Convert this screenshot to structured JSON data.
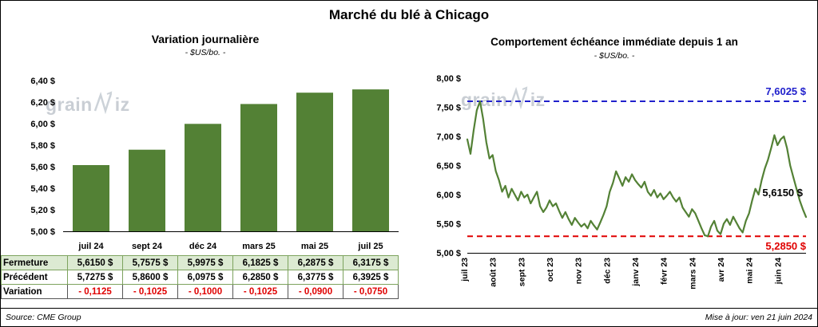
{
  "header": {
    "title": "Marché du blé à Chicago"
  },
  "branding": {
    "watermark_pre": "grain",
    "watermark_post": "iz"
  },
  "chart_data": [
    {
      "type": "bar",
      "title": "Variation journalière",
      "subtitle": "- $US/bo. -",
      "categories": [
        "juil 24",
        "sept 24",
        "déc 24",
        "mars 25",
        "mai 25",
        "juil 25"
      ],
      "values": [
        5.615,
        5.7575,
        5.9975,
        6.1825,
        6.2875,
        6.3175
      ],
      "ylim": [
        5.0,
        6.4
      ],
      "ytick_step": 0.2,
      "bar_color": "#538135",
      "grid": false,
      "legend": false
    },
    {
      "type": "line",
      "title": "Comportement échéance immédiate depuis 1 an",
      "subtitle": "- $US/bo. -",
      "x_labels": [
        "juil 23",
        "août 23",
        "sept 23",
        "oct 23",
        "nov 23",
        "déc 23",
        "janv 24",
        "févr 24",
        "mars 24",
        "avr 24",
        "mai 24",
        "juin 24"
      ],
      "values": [
        6.95,
        6.7,
        7.1,
        7.45,
        7.6025,
        7.3,
        6.9,
        6.62,
        6.68,
        6.4,
        6.25,
        6.05,
        6.15,
        5.95,
        6.1,
        6.0,
        5.9,
        6.05,
        5.95,
        6.0,
        5.85,
        5.95,
        6.05,
        5.8,
        5.7,
        5.78,
        5.9,
        5.8,
        5.85,
        5.72,
        5.6,
        5.7,
        5.58,
        5.48,
        5.6,
        5.52,
        5.45,
        5.5,
        5.42,
        5.55,
        5.47,
        5.4,
        5.52,
        5.65,
        5.8,
        6.05,
        6.2,
        6.4,
        6.28,
        6.15,
        6.3,
        6.22,
        6.35,
        6.25,
        6.18,
        6.12,
        6.22,
        6.05,
        5.98,
        6.08,
        5.95,
        6.02,
        5.92,
        5.98,
        6.05,
        5.95,
        5.88,
        5.95,
        5.78,
        5.7,
        5.62,
        5.75,
        5.68,
        5.55,
        5.42,
        5.3,
        5.285,
        5.45,
        5.55,
        5.38,
        5.32,
        5.5,
        5.58,
        5.48,
        5.62,
        5.52,
        5.42,
        5.35,
        5.55,
        5.68,
        5.9,
        6.1,
        6.0,
        6.25,
        6.45,
        6.6,
        6.8,
        7.02,
        6.85,
        6.95,
        7.0,
        6.8,
        6.5,
        6.3,
        6.1,
        5.9,
        5.75,
        5.615
      ],
      "ylim": [
        5.0,
        8.0
      ],
      "ytick_step": 0.5,
      "line_color": "#538135",
      "grid": false,
      "legend": false,
      "high_line": {
        "value": 7.6025,
        "label": "7,6025 $",
        "color": "#2121cc"
      },
      "low_line": {
        "value": 5.285,
        "label": "5,2850 $",
        "color": "#e00000"
      },
      "last_point_label": {
        "value": 5.615,
        "label": "5,6150 $",
        "color": "#000000"
      }
    }
  ],
  "table": {
    "rows": [
      {
        "label": "Fermeture",
        "style": "fermeture",
        "values": [
          "5,6150  $",
          "5,7575  $",
          "5,9975  $",
          "6,1825  $",
          "6,2875  $",
          "6,3175  $"
        ]
      },
      {
        "label": "Précédent",
        "style": "precedent",
        "values": [
          "5,7275  $",
          "5,8600  $",
          "6,0975  $",
          "6,2850  $",
          "6,3775  $",
          "6,3925  $"
        ]
      },
      {
        "label": "Variation",
        "style": "variation",
        "values": [
          "- 0,1125",
          "- 0,1025",
          "- 0,1000",
          "- 0,1025",
          "- 0,0900",
          "- 0,0750"
        ]
      }
    ]
  },
  "footer": {
    "source": "Source: CME Group",
    "updated": "Mise à jour: ven 21 juin 2024"
  }
}
